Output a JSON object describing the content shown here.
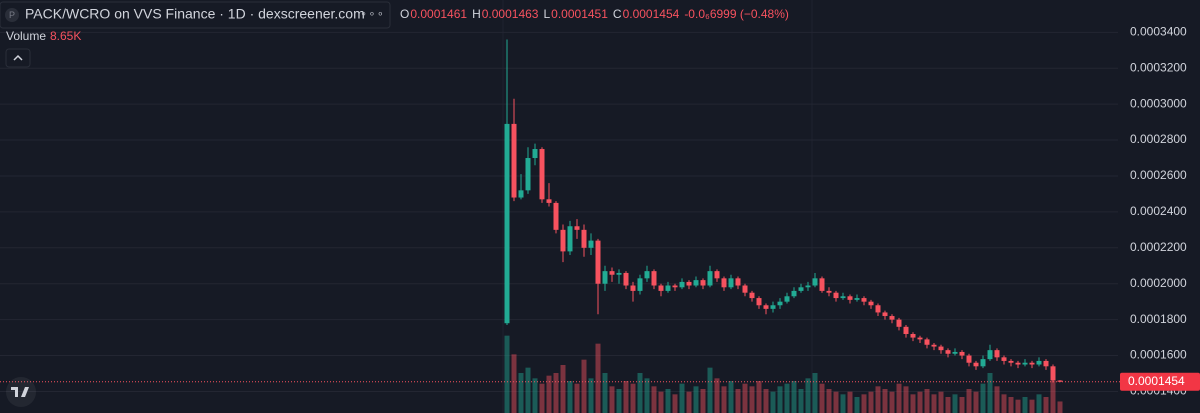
{
  "chart_data": {
    "type": "candlestick",
    "title": "PACK/WCRO on VVS Finance · 1D · dexscreener.com",
    "ohlc": [
      {
        "key": "O",
        "value": 0.0001461
      },
      {
        "key": "H",
        "value": 0.0001463
      },
      {
        "key": "L",
        "value": 0.0001451
      },
      {
        "key": "C",
        "value": 0.0001454
      }
    ],
    "change": "-0.0₆6999 (−0.48%)",
    "volume_label": "Volume",
    "volume_value": "8.65K",
    "last_price": 0.0001454,
    "up_color": "#22ab94",
    "down_color": "#f7525f",
    "ylim": [
      0.000128,
      0.000358
    ],
    "yticks": [
      {
        "value": 0.00014,
        "label": "0.0001400"
      },
      {
        "value": 0.00016,
        "label": "0.0001600"
      },
      {
        "value": 0.00018,
        "label": "0.0001800"
      },
      {
        "value": 0.0002,
        "label": "0.0002000"
      },
      {
        "value": 0.00022,
        "label": "0.0002200"
      },
      {
        "value": 0.00024,
        "label": "0.0002400"
      },
      {
        "value": 0.00026,
        "label": "0.0002600"
      },
      {
        "value": 0.00028,
        "label": "0.0002800"
      },
      {
        "value": 0.0003,
        "label": "0.0003000"
      },
      {
        "value": 0.00032,
        "label": "0.0003200"
      },
      {
        "value": 0.00034,
        "label": "0.0003400"
      }
    ],
    "grid": true,
    "vlim": [
      0,
      60
    ],
    "candles": [
      [
        0.000178,
        0.000336,
        0.000177,
        0.000289
      ],
      [
        0.000289,
        0.000303,
        0.000246,
        0.000248
      ],
      [
        0.000248,
        0.000261,
        0.000247,
        0.000252
      ],
      [
        0.000252,
        0.000276,
        0.00025,
        0.00027
      ],
      [
        0.00027,
        0.000278,
        0.000266,
        0.000275
      ],
      [
        0.000275,
        0.000276,
        0.000245,
        0.000247
      ],
      [
        0.000247,
        0.000256,
        0.000243,
        0.000245
      ],
      [
        0.000245,
        0.000246,
        0.000228,
        0.00023
      ],
      [
        0.00023,
        0.000233,
        0.000212,
        0.000218
      ],
      [
        0.000218,
        0.000235,
        0.000216,
        0.000232
      ],
      [
        0.000232,
        0.000236,
        0.000225,
        0.00023
      ],
      [
        0.00023,
        0.000233,
        0.000215,
        0.00022
      ],
      [
        0.00022,
        0.000228,
        0.000216,
        0.000224
      ],
      [
        0.000224,
        0.000225,
        0.000183,
        0.0002
      ],
      [
        0.0002,
        0.00021,
        0.000196,
        0.000207
      ],
      [
        0.000207,
        0.000209,
        0.000201,
        0.000205
      ],
      [
        0.000205,
        0.000208,
        0.0002,
        0.000206
      ],
      [
        0.000206,
        0.000207,
        0.000197,
        0.000199
      ],
      [
        0.000199,
        0.000201,
        0.00019,
        0.000196
      ],
      [
        0.000196,
        0.000205,
        0.000194,
        0.000203
      ],
      [
        0.000203,
        0.00021,
        0.000201,
        0.000207
      ],
      [
        0.000207,
        0.000208,
        0.000197,
        0.000199
      ],
      [
        0.000199,
        0.0002,
        0.000193,
        0.000196
      ],
      [
        0.000196,
        0.000201,
        0.000195,
        0.000199
      ],
      [
        0.000199,
        0.0002,
        0.000196,
        0.000198
      ],
      [
        0.000198,
        0.000203,
        0.000197,
        0.000201
      ],
      [
        0.000201,
        0.000202,
        0.000197,
        0.000199
      ],
      [
        0.000199,
        0.000204,
        0.000198,
        0.000202
      ],
      [
        0.000202,
        0.000203,
        0.000197,
        0.000199
      ],
      [
        0.000199,
        0.00021,
        0.000198,
        0.000207
      ],
      [
        0.000207,
        0.000208,
        0.000201,
        0.000203
      ],
      [
        0.000203,
        0.000204,
        0.000196,
        0.000198
      ],
      [
        0.000198,
        0.000205,
        0.000197,
        0.000203
      ],
      [
        0.000203,
        0.000204,
        0.000197,
        0.000199
      ],
      [
        0.000199,
        0.0002,
        0.000193,
        0.000195
      ],
      [
        0.000195,
        0.000196,
        0.00019,
        0.000192
      ],
      [
        0.000192,
        0.000193,
        0.000186,
        0.000188
      ],
      [
        0.000188,
        0.000189,
        0.000183,
        0.000186
      ],
      [
        0.000186,
        0.00019,
        0.000184,
        0.000188
      ],
      [
        0.000188,
        0.000192,
        0.000186,
        0.00019
      ],
      [
        0.00019,
        0.000195,
        0.000189,
        0.000193
      ],
      [
        0.000193,
        0.000198,
        0.000192,
        0.000196
      ],
      [
        0.000196,
        0.0002,
        0.000195,
        0.000198
      ],
      [
        0.000198,
        0.000201,
        0.000196,
        0.000199
      ],
      [
        0.000199,
        0.000206,
        0.000198,
        0.000203
      ],
      [
        0.000203,
        0.000204,
        0.000195,
        0.000196
      ],
      [
        0.000196,
        0.000198,
        0.000193,
        0.000195
      ],
      [
        0.000195,
        0.000196,
        0.00019,
        0.000192
      ],
      [
        0.000192,
        0.000195,
        0.000191,
        0.000193
      ],
      [
        0.000193,
        0.000194,
        0.000189,
        0.000191
      ],
      [
        0.000191,
        0.000194,
        0.00019,
        0.000192
      ],
      [
        0.000192,
        0.000193,
        0.000188,
        0.00019
      ],
      [
        0.00019,
        0.000191,
        0.000186,
        0.000188
      ],
      [
        0.000188,
        0.000189,
        0.000182,
        0.000184
      ],
      [
        0.000184,
        0.000185,
        0.00018,
        0.000182
      ],
      [
        0.000182,
        0.000183,
        0.000178,
        0.00018
      ],
      [
        0.00018,
        0.000181,
        0.000174,
        0.000176
      ],
      [
        0.000176,
        0.000177,
        0.00017,
        0.000172
      ],
      [
        0.000172,
        0.000173,
        0.000168,
        0.00017
      ],
      [
        0.00017,
        0.000171,
        0.000167,
        0.000169
      ],
      [
        0.000169,
        0.00017,
        0.000164,
        0.000166
      ],
      [
        0.000166,
        0.000167,
        0.000163,
        0.000165
      ],
      [
        0.000165,
        0.000166,
        0.000161,
        0.000163
      ],
      [
        0.000163,
        0.000164,
        0.000159,
        0.000161
      ],
      [
        0.000161,
        0.000164,
        0.00016,
        0.000162
      ],
      [
        0.000162,
        0.000163,
        0.000158,
        0.00016
      ],
      [
        0.00016,
        0.000161,
        0.000154,
        0.000156
      ],
      [
        0.000156,
        0.000157,
        0.000152,
        0.000154
      ],
      [
        0.000154,
        0.00016,
        0.000153,
        0.000158
      ],
      [
        0.000158,
        0.000166,
        0.000157,
        0.000163
      ],
      [
        0.000163,
        0.000164,
        0.000157,
        0.000159
      ],
      [
        0.000159,
        0.00016,
        0.000155,
        0.000157
      ],
      [
        0.000157,
        0.000158,
        0.000154,
        0.000156
      ],
      [
        0.000156,
        0.000157,
        0.000153,
        0.000155
      ],
      [
        0.000155,
        0.000158,
        0.000154,
        0.000156
      ],
      [
        0.000156,
        0.000157,
        0.000153,
        0.000155
      ],
      [
        0.000155,
        0.000159,
        0.000154,
        0.000157
      ],
      [
        0.000157,
        0.000158,
        0.000152,
        0.000154
      ],
      [
        0.000154,
        0.000155,
        0.000145,
        0.0001461
      ],
      [
        0.0001461,
        0.0001463,
        0.0001451,
        0.0001454
      ]
    ],
    "volume": [
      58,
      44,
      30,
      34,
      26,
      22,
      28,
      30,
      36,
      24,
      22,
      40,
      26,
      52,
      30,
      20,
      18,
      24,
      22,
      30,
      26,
      20,
      16,
      18,
      14,
      22,
      16,
      20,
      18,
      34,
      26,
      20,
      24,
      18,
      22,
      20,
      24,
      18,
      16,
      20,
      22,
      24,
      18,
      26,
      30,
      22,
      18,
      16,
      14,
      16,
      12,
      14,
      16,
      20,
      18,
      16,
      22,
      20,
      14,
      16,
      18,
      14,
      16,
      12,
      14,
      12,
      18,
      16,
      22,
      30,
      20,
      14,
      12,
      10,
      12,
      10,
      14,
      12,
      24,
      8.65
    ]
  }
}
